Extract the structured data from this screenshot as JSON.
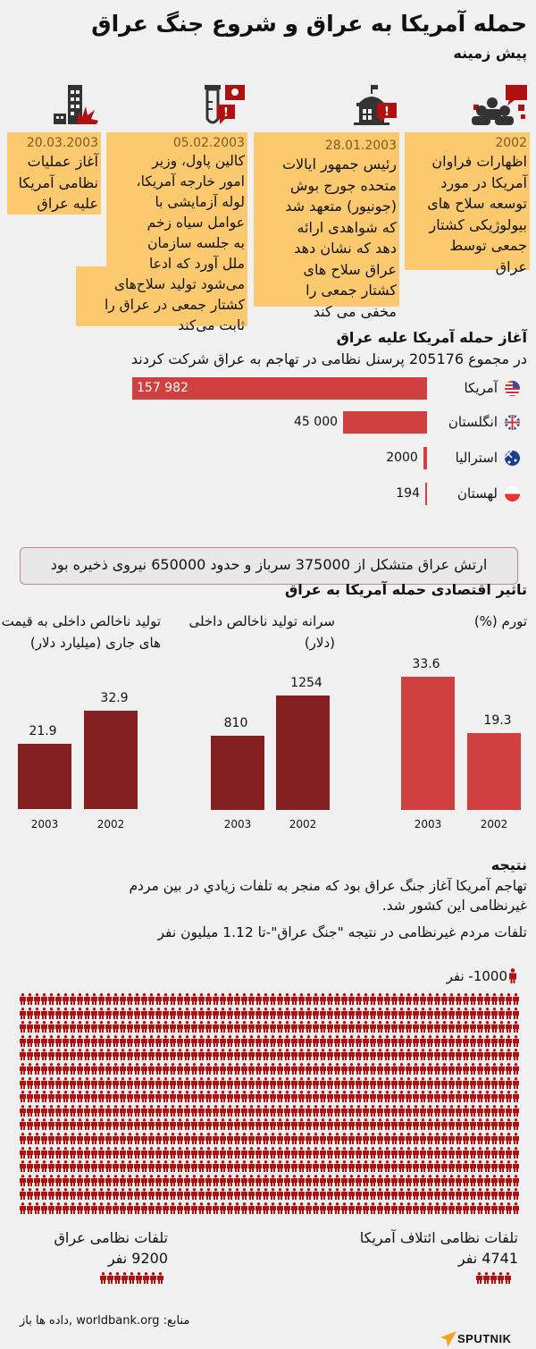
{
  "header": {
    "title": "حمله آمریکا به عراق و شروع جنگ عراق",
    "subtitle": "پیش زمینه"
  },
  "timeline": [
    {
      "icon": "people-speech-icon",
      "date": "2002",
      "lines": [
        "اظهارات  فراوان",
        "آمریکا در مورد",
        "توسعه سلاح های",
        "بیولوژیکی کشتار",
        "جمعی توسط",
        "عراق"
      ]
    },
    {
      "icon": "capitol-alert-icon",
      "date": "28.01.2003",
      "lines": [
        "رئیس جمهور ایالات",
        "متحده جورج بوش",
        "(جونیور) متعهد شد",
        "که شواهدی ارائه",
        "دهد که نشان دهد",
        "عراق سلاح های",
        "کشتار جمعی را",
        "مخفی می کند"
      ]
    },
    {
      "icon": "test-tube-alert-icon",
      "date": "05.02.2003",
      "lines": [
        "کالین پاول، وزیر",
        "امور خارجه آمریکا،",
        "لوله آزمایشی با",
        "عوامل سیاه زخم",
        "به جلسه سازمان",
        "ملل آورد که ادعا",
        "می‌شود تولید سلاح‌های",
        "کشتار جمعی در عراق را",
        "ثابت می‌کند"
      ]
    },
    {
      "icon": "building-explosion-icon",
      "date": "20.03.2003",
      "lines": [
        "آغاز عملیات",
        "نظامی آمریکا",
        "علیه عراق"
      ]
    }
  ],
  "invasion": {
    "heading": "آغاز حمله آمریکا علیه عراق",
    "total_text": "در مجموع 205176 پرسنل نظامی در تهاجم به عراق شرکت کردند",
    "note": "ارتش عراق متشکل از 375000 سرباز و  حدود 650000 نیروی ذخیره بود"
  },
  "economy": {
    "heading": "تاثیر اقتصادی حمله آمریکا به عراق"
  },
  "result": {
    "heading": "نتیجه",
    "text1": "تهاجم آمریکا آغاز جنگ عراق بود که منجر به تلفات زيادي در بین مردم",
    "text2": "غیرنظامی این کشور شد.",
    "text3": "تلفات مردم غیرنظامی در نتیجه \"جنگ عراق\"-تا 1.12 میلیون نفر",
    "legend": "1000- نفر",
    "coalition_label": "تلفات نظامی ائتلاف آمریکا",
    "coalition_value": "4741 نفر",
    "iraq_label": "تلفات نظامی عراق",
    "iraq_value": "9200 نفر"
  },
  "footer": {
    "sources": "منابع: worldbank.org ,داده ها باز",
    "logo": "SPUTNIK"
  },
  "colors": {
    "box": "#fdc96e",
    "bar_red": "#d04040",
    "bar_dark": "#84201f",
    "person": "#b01010"
  },
  "chart_data": [
    {
      "type": "bar",
      "orientation": "horizontal",
      "categories": [
        "آمریکا",
        "انگلستان",
        "استرالیا",
        "لهستان"
      ],
      "values": [
        157982,
        45000,
        2000,
        194
      ],
      "value_labels": [
        "157 982",
        "45 000",
        "2000",
        "194"
      ],
      "flags": [
        "us-flag-icon",
        "uk-flag-icon",
        "australia-flag-icon",
        "poland-flag-icon"
      ]
    },
    {
      "type": "bar",
      "title": "تورم (%)",
      "categories": [
        "2003",
        "2002"
      ],
      "values": [
        33.6,
        19.3
      ],
      "value_labels": [
        "33.6",
        "19.3"
      ],
      "color": "#d04040"
    },
    {
      "type": "bar",
      "title": "سرانه تولید ناخالص داخلی (دلار)",
      "categories": [
        "2003",
        "2002"
      ],
      "values": [
        810,
        1254
      ],
      "value_labels": [
        "810",
        "1254"
      ],
      "color": "#84201f"
    },
    {
      "type": "bar",
      "title": "تولید ناخالص داخلی به قیمت های جاری (میلیارد دلار)",
      "categories": [
        "2003",
        "2002"
      ],
      "values": [
        21.9,
        32.9
      ],
      "value_labels": [
        "21.9",
        "32.9"
      ],
      "color": "#84201f"
    },
    {
      "type": "pictogram",
      "unit_label": "1000- نفر",
      "civilian_deaths": 1120000,
      "coalition_military_deaths": 4741,
      "iraq_military_deaths": 9200
    }
  ]
}
